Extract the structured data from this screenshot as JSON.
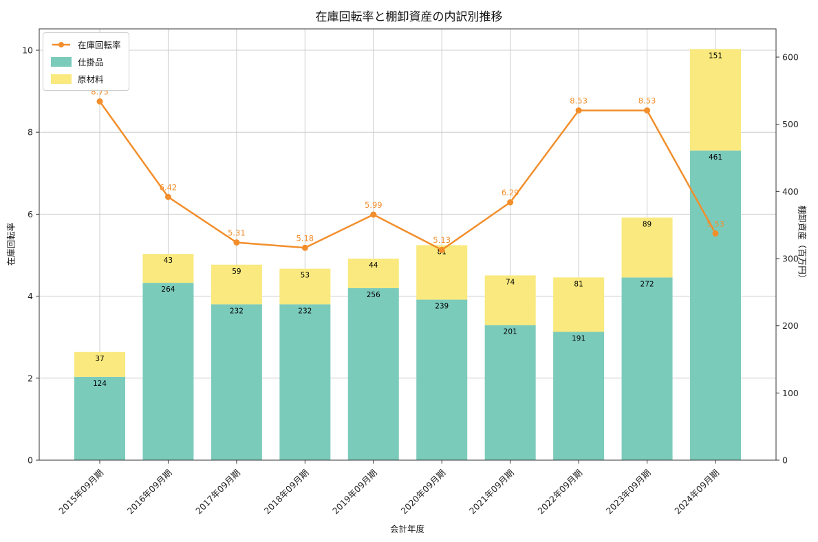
{
  "title": "在庫回転率と棚卸資産の内訳別推移",
  "colors": {
    "grid": "#cccccc",
    "spine": "#333333",
    "tick_text": "#262626"
  },
  "chart_data": {
    "type": "line+stacked-bar",
    "categories": [
      "2015年09月期",
      "2016年09月期",
      "2017年09月期",
      "2018年09月期",
      "2019年09月期",
      "2020年09月期",
      "2021年09月期",
      "2022年09月期",
      "2023年09月期",
      "2024年09月期"
    ],
    "series": [
      {
        "name": "在庫回転率",
        "type": "line",
        "axis": "left",
        "color": "#f28e2b",
        "values": [
          8.75,
          6.42,
          5.31,
          5.18,
          5.99,
          5.13,
          6.29,
          8.53,
          8.53,
          5.53
        ]
      },
      {
        "name": "仕掛品",
        "type": "bar",
        "axis": "right",
        "color": "#7bcbbb",
        "values": [
          124,
          264,
          232,
          232,
          256,
          239,
          201,
          191,
          272,
          461
        ]
      },
      {
        "name": "原材料",
        "type": "bar",
        "axis": "right",
        "color": "#f9e97e",
        "values": [
          37,
          43,
          59,
          53,
          44,
          81,
          74,
          81,
          89,
          151
        ]
      }
    ],
    "xlabel": "会計年度",
    "ylabel_left": "在庫回転率",
    "ylabel_right": "棚卸資産（百万円）",
    "ylim_left": [
      0,
      10.52
    ],
    "ylim_right": [
      0,
      642
    ],
    "yticks_left": [
      0,
      2,
      4,
      6,
      8,
      10
    ],
    "yticks_right": [
      0,
      100,
      200,
      300,
      400,
      500,
      600
    ],
    "grid": true,
    "legend_position": "upper left"
  }
}
